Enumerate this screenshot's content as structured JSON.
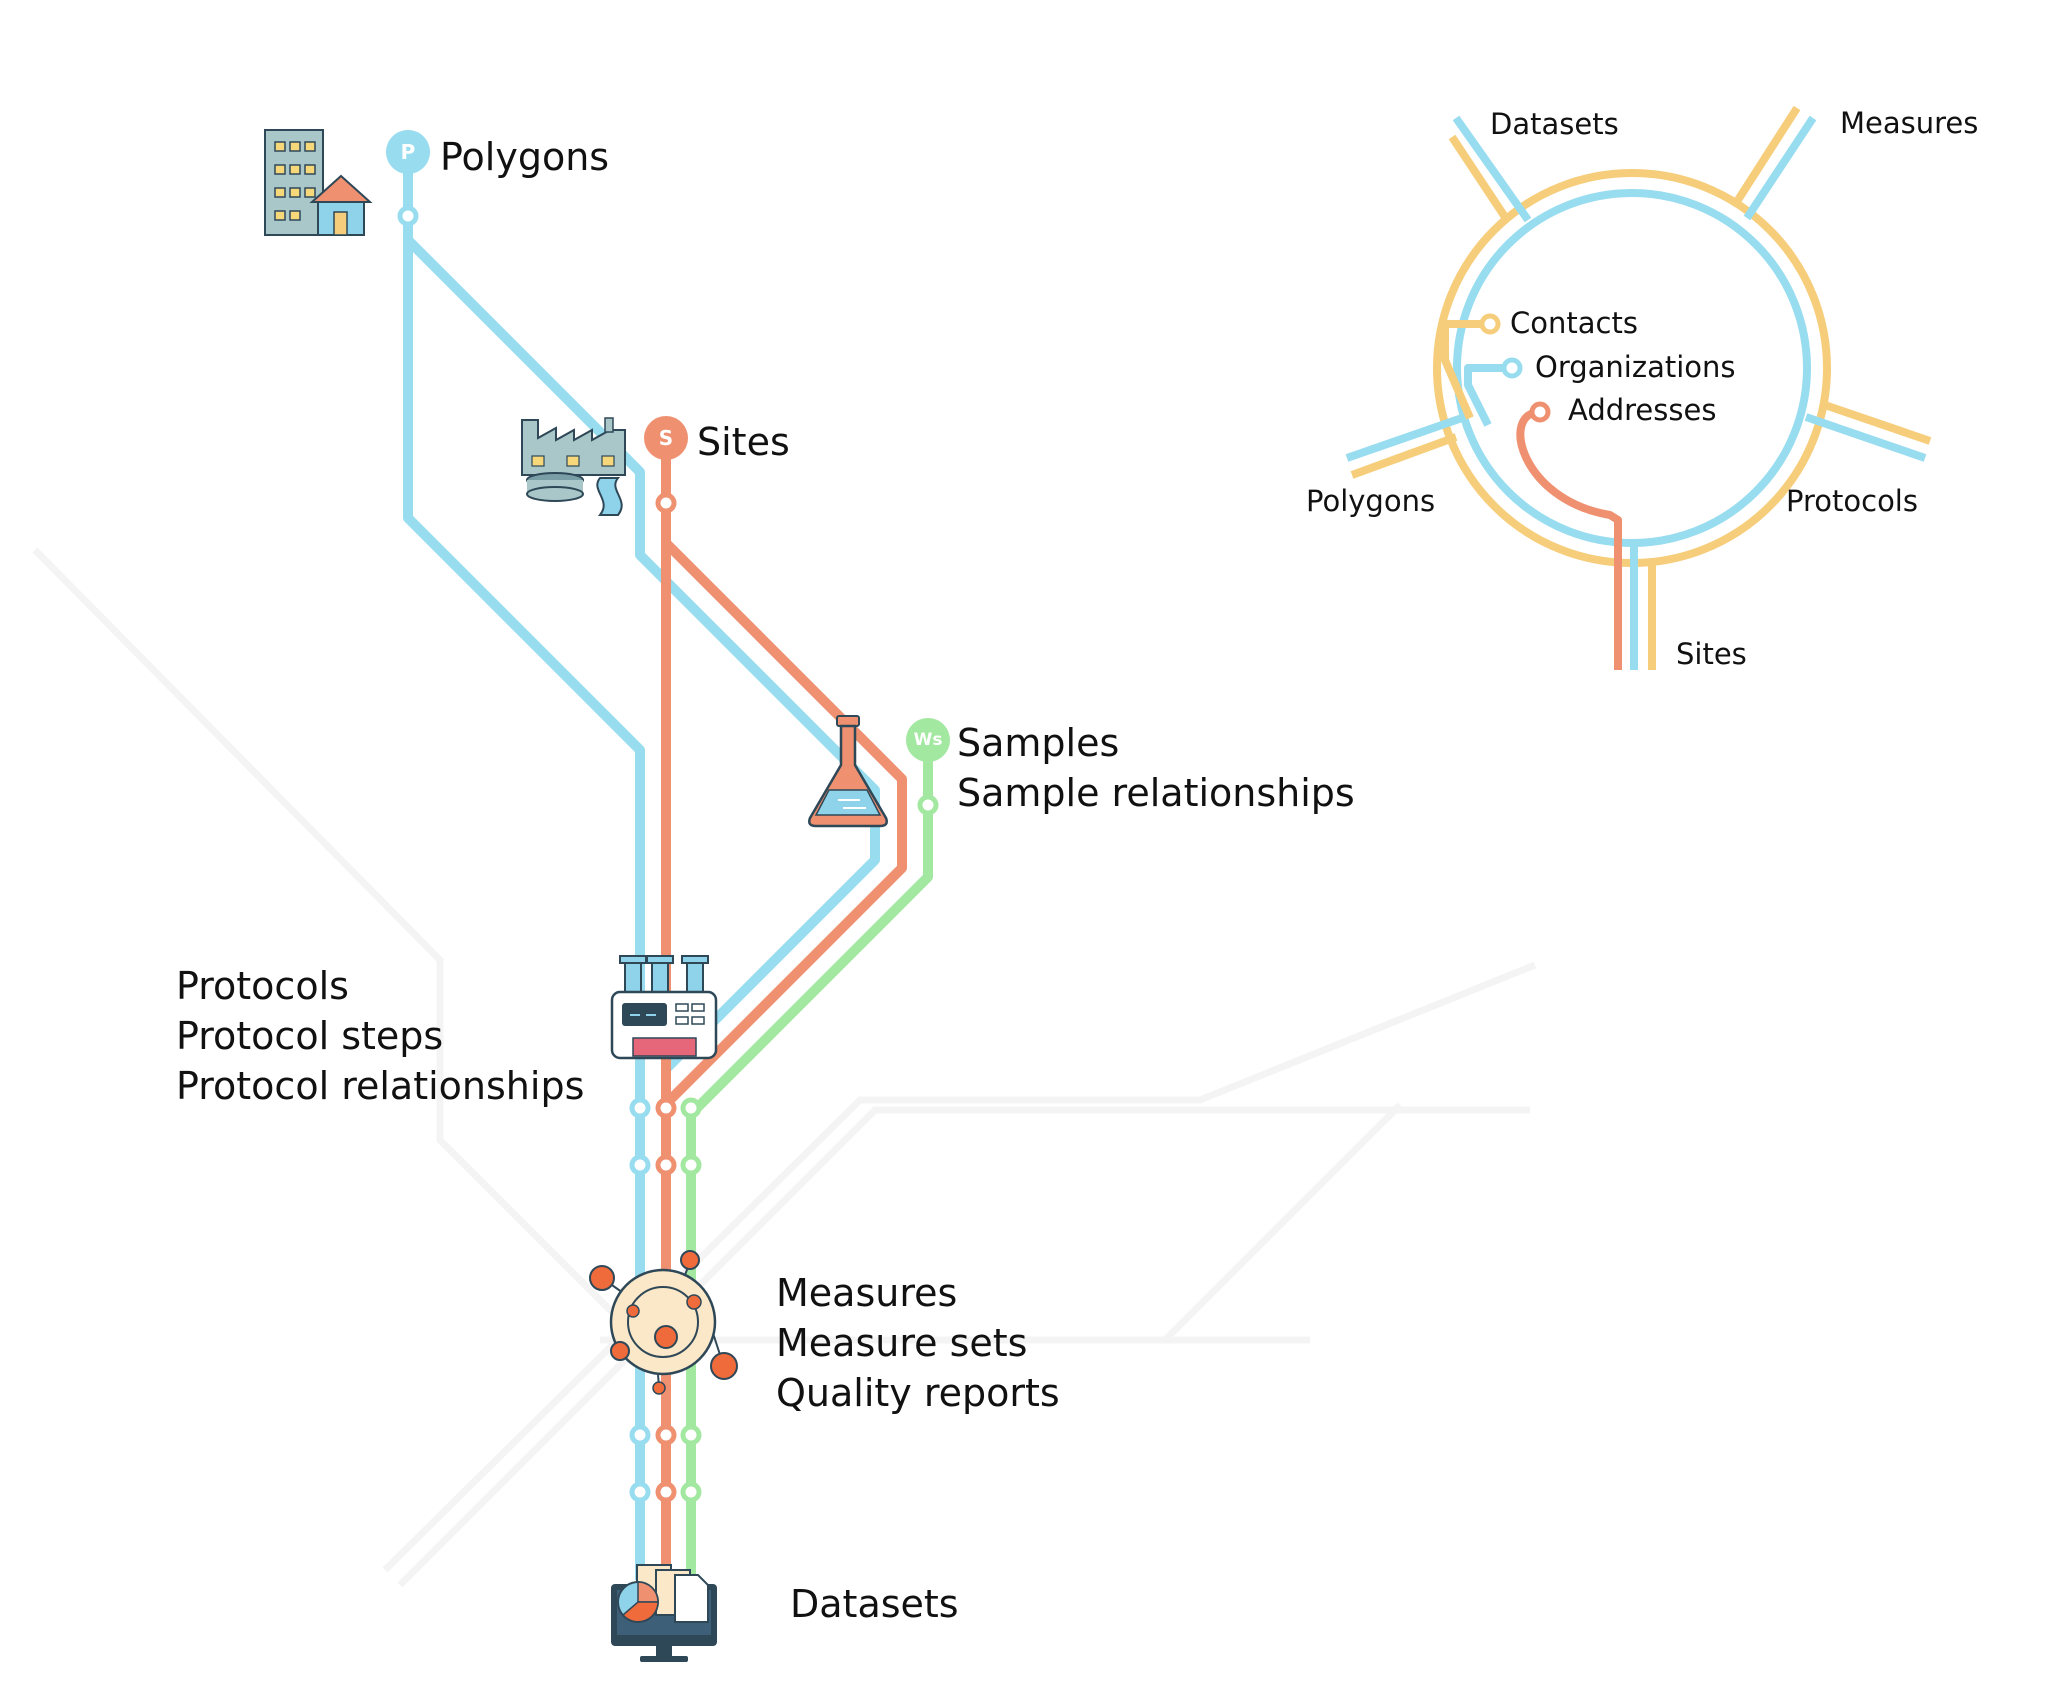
{
  "colors": {
    "polygons": "#97dcef",
    "sites": "#ef9170",
    "samples": "#a3e8a0",
    "contacts": "#f6cd7a",
    "background_track": "#f4f4f4"
  },
  "badges": {
    "polygons": "P",
    "sites": "S",
    "samples": "Ws"
  },
  "main_map": {
    "polygons": "Polygons",
    "sites": "Sites",
    "samples": [
      "Samples",
      "Sample relationships"
    ],
    "protocols": [
      "Protocols",
      "Protocol steps",
      "Protocol relationships"
    ],
    "measures": [
      "Measures",
      "Measure sets",
      "Quality reports"
    ],
    "datasets": "Datasets"
  },
  "hub": {
    "datasets": "Datasets",
    "measures": "Measures",
    "contacts": "Contacts",
    "organizations": "Organizations",
    "addresses": "Addresses",
    "polygons": "Polygons",
    "protocols": "Protocols",
    "sites": "Sites"
  },
  "icons": {
    "polygons": "buildings-icon",
    "sites": "factory-river-icon",
    "samples": "flask-icon",
    "protocols": "machine-icon",
    "measures": "molecule-icon",
    "datasets": "monitor-documents-icon"
  }
}
